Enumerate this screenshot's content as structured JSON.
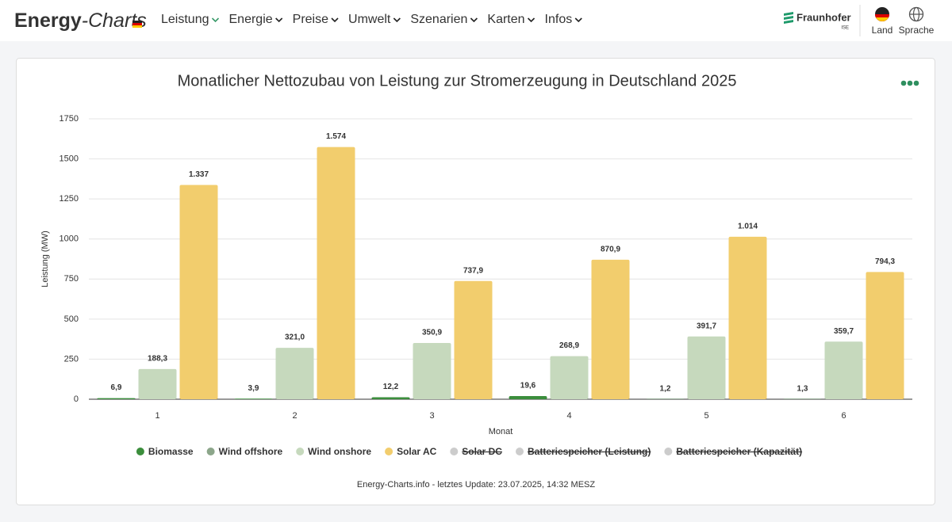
{
  "header": {
    "logo_main": "Energy",
    "logo_sub": "-Charts",
    "nav": [
      "Leistung",
      "Energie",
      "Preise",
      "Umwelt",
      "Szenarien",
      "Karten",
      "Infos"
    ],
    "brand": "Fraunhofer",
    "brand_sub": "ISE",
    "land": "Land",
    "sprache": "Sprache"
  },
  "chart_data": {
    "type": "bar",
    "title": "Monatlicher Nettozubau von Leistung zur Stromerzeugung in Deutschland 2025",
    "x_label": "Monat",
    "y_label": "Leistung (MW)",
    "categories": [
      "1",
      "2",
      "3",
      "4",
      "5",
      "6"
    ],
    "ylim": [
      0,
      1750
    ],
    "yticks": [
      0,
      250,
      500,
      750,
      1000,
      1250,
      1500,
      1750
    ],
    "grid": true,
    "series": [
      {
        "name": "Biomasse",
        "color": "#3b8e3c",
        "values": [
          6.9,
          3.9,
          12.2,
          19.6,
          1.2,
          1.3
        ],
        "value_labels": [
          "6,9",
          "3,9",
          "12,2",
          "19,6",
          "1,2",
          "1,3"
        ]
      },
      {
        "name": "Wind offshore",
        "color": "#8ca68a",
        "values": [
          null,
          null,
          null,
          null,
          null,
          null
        ]
      },
      {
        "name": "Wind onshore",
        "color": "#c6d9bd",
        "values": [
          188.3,
          321.0,
          350.9,
          268.9,
          391.7,
          359.7
        ],
        "value_labels": [
          "188,3",
          "321,0",
          "350,9",
          "268,9",
          "391,7",
          "359,7"
        ]
      },
      {
        "name": "Solar AC",
        "color": "#f2cd6d",
        "values": [
          1337,
          1574,
          737.9,
          870.9,
          1014,
          794.3
        ],
        "value_labels": [
          "1.337",
          "1.574",
          "737,9",
          "870,9",
          "1.014",
          "794,3"
        ]
      },
      {
        "name": "Solar DC",
        "color": "#cccccc",
        "visible": false,
        "values": [
          null,
          null,
          null,
          null,
          null,
          null
        ]
      },
      {
        "name": "Batteriespeicher (Leistung)",
        "color": "#cccccc",
        "visible": false,
        "values": [
          null,
          null,
          null,
          null,
          null,
          null
        ]
      },
      {
        "name": "Batteriespeicher (Kapazität)",
        "color": "#cccccc",
        "visible": false,
        "values": [
          null,
          null,
          null,
          null,
          null,
          null
        ]
      }
    ],
    "footer": "Energy-Charts.info - letztes Update: 23.07.2025, 14:32 MESZ"
  }
}
